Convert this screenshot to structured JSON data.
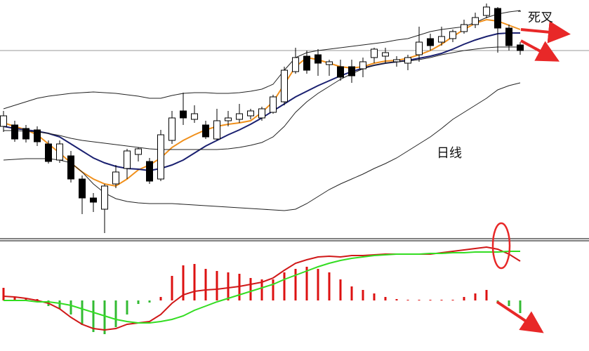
{
  "chart_data": [
    {
      "type": "candlestick",
      "ylim": [
        0,
        340
      ],
      "up_color": "#ffffff",
      "down_color": "#000000",
      "price_line": 268,
      "annotations": [
        "死叉",
        "日线"
      ],
      "open": [
        160,
        162,
        157,
        155,
        135,
        112,
        118,
        85,
        58,
        42,
        78,
        100,
        120,
        110,
        85,
        140,
        182,
        170,
        162,
        142,
        168,
        170,
        175,
        172,
        180,
        195,
        238,
        260,
        262,
        248,
        245,
        245,
        242,
        258,
        260,
        252,
        250,
        262,
        285,
        280,
        285,
        295,
        305,
        318,
        328,
        300,
        276
      ],
      "high": [
        182,
        168,
        162,
        160,
        140,
        140,
        125,
        90,
        65,
        78,
        105,
        128,
        130,
        115,
        155,
        182,
        208,
        190,
        168,
        185,
        182,
        192,
        185,
        188,
        205,
        245,
        272,
        268,
        270,
        255,
        255,
        255,
        258,
        272,
        272,
        260,
        262,
        302,
        292,
        302,
        298,
        312,
        322,
        335,
        330,
        305,
        280
      ],
      "low": [
        152,
        138,
        137,
        132,
        107,
        108,
        80,
        35,
        38,
        8,
        72,
        85,
        110,
        78,
        82,
        135,
        162,
        165,
        142,
        140,
        160,
        165,
        170,
        168,
        178,
        190,
        235,
        235,
        232,
        232,
        225,
        222,
        230,
        250,
        250,
        245,
        240,
        252,
        268,
        275,
        280,
        292,
        300,
        314,
        265,
        268,
        262
      ],
      "close": [
        175,
        142,
        142,
        138,
        110,
        135,
        85,
        58,
        52,
        75,
        95,
        125,
        128,
        82,
        148,
        172,
        172,
        178,
        145,
        168,
        172,
        178,
        182,
        185,
        202,
        240,
        258,
        240,
        250,
        252,
        230,
        232,
        252,
        270,
        265,
        255,
        258,
        280,
        275,
        288,
        295,
        305,
        315,
        330,
        300,
        275,
        268
      ],
      "series": [
        {
          "color": "#f0901c",
          "values": [
            165,
            160,
            155,
            148,
            135,
            122,
            108,
            95,
            85,
            78,
            75,
            85,
            98,
            105,
            115,
            130,
            140,
            148,
            155,
            160,
            163,
            165,
            168,
            180,
            195,
            220,
            245,
            258,
            255,
            250,
            245,
            243,
            245,
            250,
            253,
            254,
            257,
            262,
            268,
            277,
            288,
            298,
            307,
            312,
            310,
            304,
            298
          ]
        },
        {
          "color": "#1a2070",
          "values": [
            160,
            157,
            155,
            153,
            150,
            145,
            135,
            125,
            115,
            108,
            103,
            100,
            99,
            97,
            100,
            105,
            112,
            122,
            132,
            140,
            148,
            155,
            163,
            172,
            182,
            192,
            202,
            210,
            218,
            225,
            232,
            238,
            243,
            247,
            250,
            252,
            254,
            257,
            260,
            264,
            270,
            277,
            283,
            288,
            292,
            293,
            293
          ]
        },
        {
          "color": "#222222",
          "values": [
            185,
            190,
            195,
            200,
            203,
            205,
            207,
            208,
            209,
            208,
            207,
            205,
            203,
            200,
            200,
            204,
            207,
            208,
            208,
            207,
            207,
            208,
            210,
            213,
            220,
            240,
            258,
            265,
            268,
            270,
            272,
            274,
            276,
            278,
            280,
            283,
            285,
            290,
            295,
            298,
            300,
            302,
            308,
            315,
            320,
            323,
            325
          ]
        },
        {
          "color": "#222222",
          "values": [
            154,
            154,
            153,
            152,
            150,
            147,
            143,
            140,
            138,
            136,
            134,
            132,
            130,
            128,
            127,
            127,
            127,
            127,
            127,
            127,
            128,
            130,
            133,
            137,
            145,
            160,
            180,
            195,
            207,
            217,
            227,
            235,
            242,
            247,
            250,
            252,
            253,
            255,
            258,
            262,
            265,
            268,
            270,
            272,
            273,
            273,
            273
          ]
        },
        {
          "color": "#222222",
          "values": [
            112,
            113,
            114,
            114,
            114,
            112,
            108,
            95,
            78,
            65,
            57,
            53,
            51,
            50,
            50,
            50,
            49,
            48,
            47,
            46,
            45,
            44,
            43,
            42,
            41,
            40,
            42,
            50,
            60,
            70,
            78,
            85,
            92,
            100,
            107,
            115,
            125,
            135,
            145,
            157,
            170,
            180,
            190,
            200,
            212,
            218,
            222
          ]
        }
      ]
    },
    {
      "type": "macd",
      "ylim": [
        -72,
        85
      ],
      "up_color": "#dd1111",
      "down_color": "#33bb33",
      "histogram": [
        18,
        5,
        3,
        2,
        -8,
        -12,
        -20,
        -35,
        -45,
        -48,
        -38,
        -20,
        -5,
        -3,
        5,
        35,
        50,
        52,
        45,
        42,
        40,
        38,
        32,
        30,
        30,
        40,
        45,
        48,
        45,
        40,
        30,
        20,
        15,
        10,
        5,
        2,
        1,
        1,
        1,
        1,
        1,
        5,
        10,
        15,
        -3,
        -8,
        -18
      ],
      "series": [
        {
          "color": "#d01818",
          "values": [
            6,
            5,
            3,
            0,
            -4,
            -12,
            -24,
            -34,
            -40,
            -42,
            -40,
            -34,
            -32,
            -30,
            -20,
            -4,
            8,
            13,
            15,
            16,
            18,
            20,
            23,
            26,
            32,
            43,
            53,
            58,
            62,
            63,
            62,
            64,
            64,
            65,
            66,
            66,
            66,
            66,
            66,
            68,
            70,
            72,
            74,
            76,
            73,
            66,
            56
          ]
        },
        {
          "color": "#33dd22",
          "values": [
            0,
            0,
            0,
            -2,
            -2,
            -4,
            -7,
            -12,
            -17,
            -22,
            -27,
            -30,
            -32,
            -32,
            -30,
            -27,
            -22,
            -14,
            -8,
            -2,
            3,
            8,
            13,
            18,
            23,
            30,
            36,
            42,
            48,
            53,
            57,
            60,
            62,
            64,
            65,
            66,
            66,
            66,
            67,
            67,
            68,
            68,
            69,
            69,
            69,
            70,
            70
          ]
        }
      ]
    }
  ]
}
